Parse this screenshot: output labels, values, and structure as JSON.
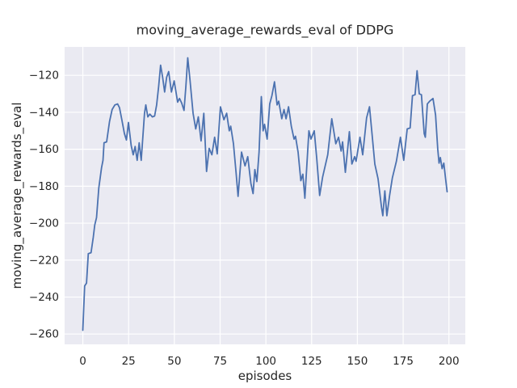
{
  "chart_data": {
    "type": "line",
    "title": "moving_average_rewards_eval of DDPG",
    "xlabel": "episodes",
    "ylabel": "moving_average_rewards_eval",
    "xlim": [
      -9.95,
      208.95
    ],
    "ylim": [
      -265.6,
      -104.6
    ],
    "x_ticks": [
      0,
      25,
      50,
      75,
      100,
      125,
      150,
      175,
      200
    ],
    "x_tick_labels": [
      "0",
      "25",
      "50",
      "75",
      "100",
      "125",
      "150",
      "175",
      "200"
    ],
    "y_ticks": [
      -120,
      -140,
      -160,
      -180,
      -200,
      -220,
      -240,
      -260
    ],
    "y_tick_labels": [
      "−120",
      "−140",
      "−160",
      "−180",
      "−200",
      "−220",
      "−240",
      "−260"
    ],
    "grid": true,
    "legend": "none",
    "colors": {
      "line": "#4C72B0",
      "plot_bg": "#EAEAF2",
      "grid": "#FFFFFF",
      "text": "#262626",
      "figure_bg": "#FFFFFF"
    },
    "series": [
      {
        "name": "moving_average_rewards_eval",
        "x": [
          0,
          1,
          2,
          3,
          4.5,
          5.7,
          6.5,
          7.5,
          8.7,
          10.2,
          11,
          11.6,
          13,
          13.8,
          14.6,
          16,
          17.5,
          19,
          20,
          21.2,
          22.7,
          23.8,
          24.9,
          26.4,
          27.5,
          28.6,
          29.7,
          30.8,
          31.9,
          33.7,
          34.4,
          35.5,
          36.6,
          38,
          39.2,
          40.3,
          41.4,
          42.5,
          43.6,
          44.7,
          45.8,
          46.9,
          48.4,
          49.9,
          51.8,
          52.8,
          54,
          55.3,
          56.3,
          57.3,
          58.5,
          60.2,
          61.7,
          63.1,
          64.6,
          66.1,
          67.6,
          69,
          70.5,
          72,
          73.4,
          75.2,
          77.1,
          78.6,
          80,
          80.8,
          82.3,
          83.7,
          84.8,
          86.7,
          88.6,
          90.1,
          91.8,
          93,
          94,
          95.1,
          96.3,
          97.5,
          98.5,
          99.3,
          100.7,
          102.1,
          103.3,
          104.7,
          106.1,
          107,
          108.7,
          109.9,
          111,
          112.4,
          113.9,
          115.4,
          116.2,
          117.6,
          119.1,
          120.2,
          121.3,
          123.5,
          124.6,
          126.4,
          127.8,
          129.4,
          131,
          133.8,
          136,
          138.2,
          139.7,
          141.1,
          141.9,
          143.4,
          145.6,
          147,
          148.5,
          149.3,
          151.4,
          152.9,
          155,
          156.6,
          158,
          159.5,
          161.3,
          163.2,
          163.9,
          165,
          166.1,
          167.6,
          169.1,
          171.3,
          173.5,
          175.3,
          177.2,
          178.8,
          180.1,
          181.5,
          182.6,
          183.8,
          185,
          186.5,
          187.1,
          188.2,
          189.5,
          191.3,
          192.7,
          193.9,
          194.6,
          195.3,
          196.3,
          197.2,
          198.2,
          199
        ],
        "y": [
          -258,
          -234,
          -232.5,
          -216.5,
          -216,
          -207.5,
          -201,
          -197,
          -181,
          -170,
          -166,
          -156.5,
          -156,
          -150.5,
          -145,
          -138.5,
          -136,
          -135.5,
          -137.5,
          -143.5,
          -151.5,
          -155,
          -145.5,
          -158,
          -163,
          -158.5,
          -166,
          -156.5,
          -166,
          -140.5,
          -136,
          -142.5,
          -141,
          -142.5,
          -142,
          -136,
          -126,
          -114.5,
          -121,
          -129,
          -121,
          -118,
          -129,
          -123,
          -134.5,
          -132.5,
          -135,
          -139,
          -126,
          -110.5,
          -122,
          -140.5,
          -149,
          -142.5,
          -155.5,
          -140.5,
          -172,
          -159.5,
          -163,
          -153.5,
          -162.5,
          -137,
          -144,
          -140.5,
          -150,
          -147.5,
          -157,
          -172.5,
          -185.5,
          -161.5,
          -169,
          -164,
          -178.5,
          -184,
          -171,
          -177.5,
          -161.5,
          -131.5,
          -150,
          -146.5,
          -154.5,
          -135.5,
          -131,
          -123.5,
          -136,
          -134,
          -143.5,
          -138.5,
          -143.5,
          -137,
          -147.5,
          -154.5,
          -153,
          -161.5,
          -177,
          -173.5,
          -186.5,
          -150,
          -154.5,
          -150,
          -165,
          -185,
          -175,
          -163,
          -143.5,
          -157,
          -153.5,
          -161,
          -156,
          -172.5,
          -150.5,
          -168,
          -164,
          -166.5,
          -153.5,
          -163,
          -143,
          -137,
          -152,
          -168,
          -176,
          -191.5,
          -196,
          -182.5,
          -196,
          -185,
          -175.5,
          -166.5,
          -153.5,
          -166,
          -149,
          -148.5,
          -131,
          -130.5,
          -117.5,
          -130,
          -130.5,
          -151.5,
          -153.5,
          -135.5,
          -134,
          -132.5,
          -141.5,
          -160,
          -167.5,
          -164.5,
          -170.5,
          -167.5,
          -176,
          -183
        ]
      }
    ]
  }
}
